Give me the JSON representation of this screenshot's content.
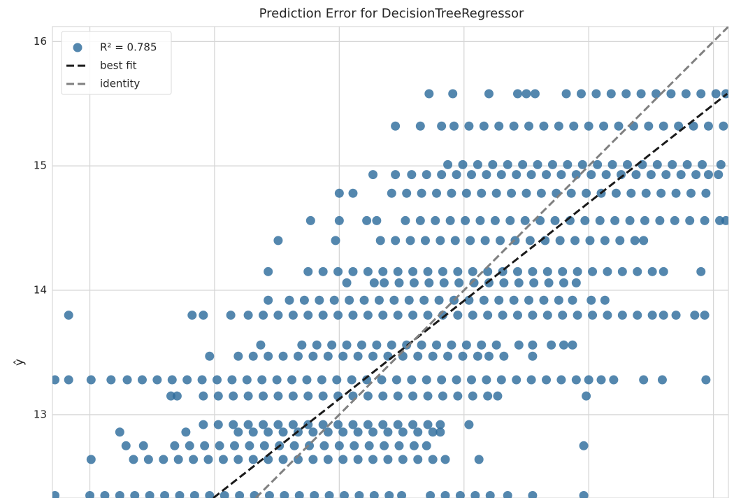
{
  "chart_data": {
    "type": "scatter",
    "title": "Prediction Error for DecisionTreeRegressor",
    "ylabel": "ŷ",
    "xlim": [
      10.7,
      16.12
    ],
    "ylim": [
      12.33,
      16.12
    ],
    "xticks": [
      11,
      12,
      13,
      14,
      15,
      16
    ],
    "yticks": [
      13,
      14,
      15,
      16
    ],
    "grid": true,
    "legend": "upper left",
    "series": [
      {
        "name": "R² = 0.785",
        "type": "scatter",
        "color": "#2e6d9c",
        "x": [
          13.72,
          13.91,
          14.2,
          14.43,
          14.5,
          14.57,
          14.82,
          14.94,
          15.06,
          15.18,
          15.3,
          15.42,
          15.54,
          15.66,
          15.78,
          15.9,
          16.02,
          16.1,
          13.45,
          13.65,
          13.82,
          13.92,
          14.04,
          14.16,
          14.28,
          14.4,
          14.52,
          14.64,
          14.76,
          14.88,
          15.0,
          15.12,
          15.24,
          15.36,
          15.48,
          15.6,
          15.72,
          15.84,
          15.96,
          16.08,
          13.87,
          13.99,
          14.11,
          14.23,
          14.35,
          14.47,
          14.59,
          14.71,
          14.83,
          14.95,
          15.07,
          15.19,
          15.31,
          15.43,
          15.55,
          15.67,
          15.79,
          15.91,
          16.06,
          13.27,
          13.45,
          13.58,
          13.7,
          13.82,
          13.94,
          14.06,
          14.18,
          14.3,
          14.42,
          14.54,
          14.66,
          14.78,
          14.9,
          15.02,
          15.14,
          15.26,
          15.38,
          15.5,
          15.62,
          15.74,
          15.86,
          15.96,
          16.04,
          13.0,
          13.11,
          13.42,
          13.54,
          13.66,
          13.78,
          13.9,
          14.02,
          14.14,
          14.26,
          14.38,
          14.5,
          14.62,
          14.74,
          14.86,
          14.98,
          15.1,
          15.22,
          15.34,
          15.46,
          15.58,
          15.7,
          15.82,
          15.94,
          12.77,
          13.0,
          13.22,
          13.3,
          13.53,
          13.65,
          13.77,
          13.89,
          14.01,
          14.13,
          14.25,
          14.37,
          14.49,
          14.61,
          14.73,
          14.85,
          14.97,
          15.09,
          15.21,
          15.33,
          15.45,
          15.57,
          15.69,
          15.81,
          15.93,
          16.05,
          16.1,
          12.51,
          12.97,
          13.33,
          13.45,
          13.57,
          13.69,
          13.81,
          13.93,
          14.05,
          14.17,
          14.29,
          14.41,
          14.53,
          14.65,
          14.77,
          14.89,
          15.01,
          15.13,
          15.25,
          15.37,
          15.44,
          12.43,
          12.75,
          12.87,
          12.99,
          13.11,
          13.23,
          13.35,
          13.47,
          13.59,
          13.71,
          13.83,
          13.95,
          14.07,
          14.19,
          14.31,
          14.43,
          14.55,
          14.67,
          14.79,
          14.91,
          15.03,
          15.15,
          15.27,
          15.39,
          15.51,
          15.6,
          15.9,
          13.06,
          13.28,
          13.36,
          13.48,
          13.6,
          13.72,
          13.84,
          13.96,
          14.08,
          14.2,
          14.32,
          14.44,
          14.56,
          14.68,
          14.8,
          14.9,
          12.43,
          12.6,
          12.72,
          12.84,
          12.96,
          13.08,
          13.2,
          13.32,
          13.44,
          13.56,
          13.68,
          13.8,
          13.92,
          14.04,
          14.16,
          14.28,
          14.4,
          14.52,
          14.64,
          14.76,
          14.87,
          15.02,
          15.13,
          10.83,
          11.82,
          11.91,
          12.13,
          12.27,
          12.39,
          12.51,
          12.63,
          12.75,
          12.87,
          12.99,
          13.11,
          13.23,
          13.35,
          13.47,
          13.59,
          13.71,
          13.83,
          13.95,
          14.07,
          14.19,
          14.31,
          14.43,
          14.55,
          14.67,
          14.79,
          14.91,
          15.03,
          15.15,
          15.27,
          15.39,
          15.51,
          15.6,
          15.7,
          15.85,
          15.93,
          12.37,
          12.7,
          12.82,
          12.94,
          13.06,
          13.18,
          13.3,
          13.42,
          13.54,
          13.66,
          13.78,
          13.9,
          14.02,
          14.14,
          14.26,
          14.44,
          14.55,
          14.7,
          14.8,
          14.87,
          11.96,
          12.19,
          12.31,
          12.43,
          12.55,
          12.67,
          12.79,
          12.91,
          13.03,
          13.15,
          13.27,
          13.39,
          13.51,
          13.63,
          13.75,
          13.87,
          13.99,
          14.11,
          14.2,
          14.32,
          14.55,
          10.72,
          10.83,
          11.01,
          11.17,
          11.3,
          11.42,
          11.54,
          11.66,
          11.78,
          11.9,
          12.02,
          12.14,
          12.26,
          12.38,
          12.5,
          12.62,
          12.74,
          12.86,
          12.98,
          13.1,
          13.22,
          13.34,
          13.46,
          13.58,
          13.7,
          13.82,
          13.94,
          14.06,
          14.18,
          14.3,
          14.42,
          14.54,
          14.66,
          14.78,
          14.9,
          15.0,
          15.1,
          15.2,
          15.44,
          15.59,
          15.94,
          11.65,
          11.7,
          11.91,
          12.03,
          12.15,
          12.27,
          12.39,
          12.51,
          12.63,
          12.75,
          12.87,
          12.99,
          13.11,
          13.23,
          13.35,
          13.47,
          13.59,
          13.71,
          13.83,
          13.95,
          14.07,
          14.19,
          14.27,
          14.98,
          11.91,
          12.03,
          12.15,
          12.27,
          12.39,
          12.51,
          12.63,
          12.75,
          12.87,
          12.99,
          13.11,
          13.23,
          13.35,
          13.47,
          13.59,
          13.71,
          13.81,
          14.04,
          11.24,
          11.77,
          12.19,
          12.31,
          12.43,
          12.55,
          12.67,
          12.79,
          12.91,
          13.03,
          13.15,
          13.27,
          13.39,
          13.51,
          13.63,
          13.75,
          13.81,
          11.29,
          11.43,
          11.68,
          11.8,
          11.92,
          12.04,
          12.16,
          12.28,
          12.4,
          12.52,
          12.64,
          12.76,
          12.88,
          13.0,
          13.12,
          13.24,
          13.36,
          13.48,
          13.6,
          13.7,
          14.96,
          11.01,
          11.35,
          11.47,
          11.59,
          11.71,
          11.83,
          11.95,
          12.07,
          12.19,
          12.31,
          12.43,
          12.55,
          12.67,
          12.79,
          12.91,
          13.03,
          13.15,
          13.27,
          13.39,
          13.51,
          13.63,
          13.75,
          13.85,
          14.12,
          10.72,
          11.0,
          11.12,
          11.24,
          11.36,
          11.48,
          11.6,
          11.72,
          11.84,
          11.96,
          12.08,
          12.2,
          12.32,
          12.44,
          12.56,
          12.68,
          12.8,
          12.92,
          13.04,
          13.16,
          13.28,
          13.4,
          13.5,
          13.73,
          13.85,
          13.97,
          14.09,
          14.21,
          14.35,
          14.55,
          14.96
        ],
        "y": [
          15.58,
          15.58,
          15.58,
          15.58,
          15.58,
          15.58,
          15.58,
          15.58,
          15.58,
          15.58,
          15.58,
          15.58,
          15.58,
          15.58,
          15.58,
          15.58,
          15.58,
          15.58,
          15.32,
          15.32,
          15.32,
          15.32,
          15.32,
          15.32,
          15.32,
          15.32,
          15.32,
          15.32,
          15.32,
          15.32,
          15.32,
          15.32,
          15.32,
          15.32,
          15.32,
          15.32,
          15.32,
          15.32,
          15.32,
          15.32,
          15.01,
          15.01,
          15.01,
          15.01,
          15.01,
          15.01,
          15.01,
          15.01,
          15.01,
          15.01,
          15.01,
          15.01,
          15.01,
          15.01,
          15.01,
          15.01,
          15.01,
          15.01,
          15.01,
          14.93,
          14.93,
          14.93,
          14.93,
          14.93,
          14.93,
          14.93,
          14.93,
          14.93,
          14.93,
          14.93,
          14.93,
          14.93,
          14.93,
          14.93,
          14.93,
          14.93,
          14.93,
          14.93,
          14.93,
          14.93,
          14.93,
          14.93,
          14.93,
          14.78,
          14.78,
          14.78,
          14.78,
          14.78,
          14.78,
          14.78,
          14.78,
          14.78,
          14.78,
          14.78,
          14.78,
          14.78,
          14.78,
          14.78,
          14.78,
          14.78,
          14.78,
          14.78,
          14.78,
          14.78,
          14.78,
          14.78,
          14.78,
          14.56,
          14.56,
          14.56,
          14.56,
          14.56,
          14.56,
          14.56,
          14.56,
          14.56,
          14.56,
          14.56,
          14.56,
          14.56,
          14.56,
          14.56,
          14.56,
          14.56,
          14.56,
          14.56,
          14.56,
          14.56,
          14.56,
          14.56,
          14.56,
          14.56,
          14.56,
          14.56,
          14.4,
          14.4,
          14.4,
          14.4,
          14.4,
          14.4,
          14.4,
          14.4,
          14.4,
          14.4,
          14.4,
          14.4,
          14.4,
          14.4,
          14.4,
          14.4,
          14.4,
          14.4,
          14.4,
          14.4,
          14.4,
          14.15,
          14.15,
          14.15,
          14.15,
          14.15,
          14.15,
          14.15,
          14.15,
          14.15,
          14.15,
          14.15,
          14.15,
          14.15,
          14.15,
          14.15,
          14.15,
          14.15,
          14.15,
          14.15,
          14.15,
          14.15,
          14.15,
          14.15,
          14.15,
          14.15,
          14.15,
          14.15,
          14.06,
          14.06,
          14.06,
          14.06,
          14.06,
          14.06,
          14.06,
          14.06,
          14.06,
          14.06,
          14.06,
          14.06,
          14.06,
          14.06,
          14.06,
          14.06,
          13.92,
          13.92,
          13.92,
          13.92,
          13.92,
          13.92,
          13.92,
          13.92,
          13.92,
          13.92,
          13.92,
          13.92,
          13.92,
          13.92,
          13.92,
          13.92,
          13.92,
          13.92,
          13.92,
          13.92,
          13.92,
          13.92,
          13.92,
          13.8,
          13.8,
          13.8,
          13.8,
          13.8,
          13.8,
          13.8,
          13.8,
          13.8,
          13.8,
          13.8,
          13.8,
          13.8,
          13.8,
          13.8,
          13.8,
          13.8,
          13.8,
          13.8,
          13.8,
          13.8,
          13.8,
          13.8,
          13.8,
          13.8,
          13.8,
          13.8,
          13.8,
          13.8,
          13.8,
          13.8,
          13.8,
          13.8,
          13.8,
          13.8,
          13.8,
          13.56,
          13.56,
          13.56,
          13.56,
          13.56,
          13.56,
          13.56,
          13.56,
          13.56,
          13.56,
          13.56,
          13.56,
          13.56,
          13.56,
          13.56,
          13.56,
          13.56,
          13.56,
          13.56,
          13.56,
          13.47,
          13.47,
          13.47,
          13.47,
          13.47,
          13.47,
          13.47,
          13.47,
          13.47,
          13.47,
          13.47,
          13.47,
          13.47,
          13.47,
          13.47,
          13.47,
          13.47,
          13.47,
          13.47,
          13.47,
          13.47,
          13.28,
          13.28,
          13.28,
          13.28,
          13.28,
          13.28,
          13.28,
          13.28,
          13.28,
          13.28,
          13.28,
          13.28,
          13.28,
          13.28,
          13.28,
          13.28,
          13.28,
          13.28,
          13.28,
          13.28,
          13.28,
          13.28,
          13.28,
          13.28,
          13.28,
          13.28,
          13.28,
          13.28,
          13.28,
          13.28,
          13.28,
          13.28,
          13.28,
          13.28,
          13.28,
          13.28,
          13.28,
          13.28,
          13.28,
          13.28,
          13.28,
          13.15,
          13.15,
          13.15,
          13.15,
          13.15,
          13.15,
          13.15,
          13.15,
          13.15,
          13.15,
          13.15,
          13.15,
          13.15,
          13.15,
          13.15,
          13.15,
          13.15,
          13.15,
          13.15,
          13.15,
          13.15,
          13.15,
          13.15,
          13.15,
          12.92,
          12.92,
          12.92,
          12.92,
          12.92,
          12.92,
          12.92,
          12.92,
          12.92,
          12.92,
          12.92,
          12.92,
          12.92,
          12.92,
          12.92,
          12.92,
          12.92,
          12.92,
          12.86,
          12.86,
          12.86,
          12.86,
          12.86,
          12.86,
          12.86,
          12.86,
          12.86,
          12.86,
          12.86,
          12.86,
          12.86,
          12.86,
          12.86,
          12.86,
          12.86,
          12.75,
          12.75,
          12.75,
          12.75,
          12.75,
          12.75,
          12.75,
          12.75,
          12.75,
          12.75,
          12.75,
          12.75,
          12.75,
          12.75,
          12.75,
          12.75,
          12.75,
          12.75,
          12.75,
          12.75,
          12.75,
          12.64,
          12.64,
          12.64,
          12.64,
          12.64,
          12.64,
          12.64,
          12.64,
          12.64,
          12.64,
          12.64,
          12.64,
          12.64,
          12.64,
          12.64,
          12.64,
          12.64,
          12.64,
          12.64,
          12.64,
          12.64,
          12.64,
          12.64,
          12.64,
          12.35,
          12.35,
          12.35,
          12.35,
          12.35,
          12.35,
          12.35,
          12.35,
          12.35,
          12.35,
          12.35,
          12.35,
          12.35,
          12.35,
          12.35,
          12.35,
          12.35,
          12.35,
          12.35,
          12.35,
          12.35,
          12.35,
          12.35,
          12.35,
          12.35,
          12.35,
          12.35,
          12.35,
          12.35,
          12.35,
          12.35
        ]
      },
      {
        "name": "best fit",
        "type": "line",
        "color": "#1a1a1a",
        "x": [
          11.99,
          16.11
        ],
        "y": [
          12.33,
          15.58
        ]
      },
      {
        "name": "identity",
        "type": "line",
        "color": "#808080",
        "x": [
          12.33,
          16.12
        ],
        "y": [
          12.33,
          16.12
        ]
      }
    ]
  }
}
